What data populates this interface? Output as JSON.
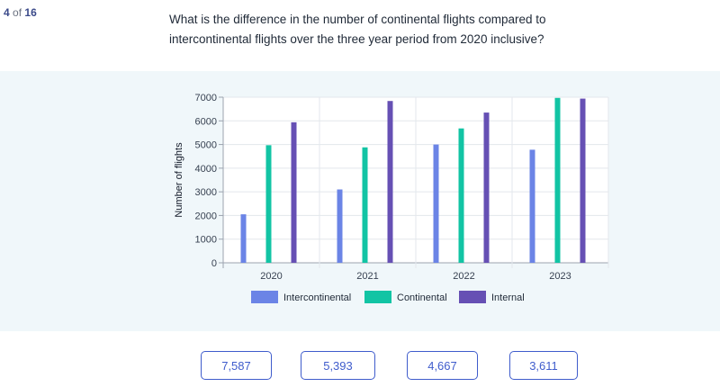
{
  "progress": {
    "current": "4",
    "of_label": "of",
    "total": "16"
  },
  "question": "What is the difference in the number of continental flights compared to intercontinental flights over the three year period from 2020 inclusive?",
  "chart_data": {
    "type": "bar",
    "categories": [
      "2020",
      "2021",
      "2022",
      "2023"
    ],
    "series": [
      {
        "name": "Intercontinental",
        "color": "#6b84e6",
        "values": [
          2050,
          3100,
          5000,
          4780
        ]
      },
      {
        "name": "Continental",
        "color": "#12c4a4",
        "values": [
          4970,
          4880,
          5680,
          6970
        ]
      },
      {
        "name": "Internal",
        "color": "#6650b4",
        "values": [
          5940,
          6840,
          6350,
          6940
        ]
      }
    ],
    "xlabel": "",
    "ylabel": "Number of flights",
    "ylim": [
      0,
      7000
    ],
    "yticks": [
      "0",
      "1000",
      "2000",
      "3000",
      "4000",
      "5000",
      "6000",
      "7000"
    ],
    "grid": true,
    "legend_position": "bottom"
  },
  "answers": [
    {
      "label": "7,587"
    },
    {
      "label": "5,393"
    },
    {
      "label": "4,667"
    },
    {
      "label": "3,611"
    }
  ]
}
